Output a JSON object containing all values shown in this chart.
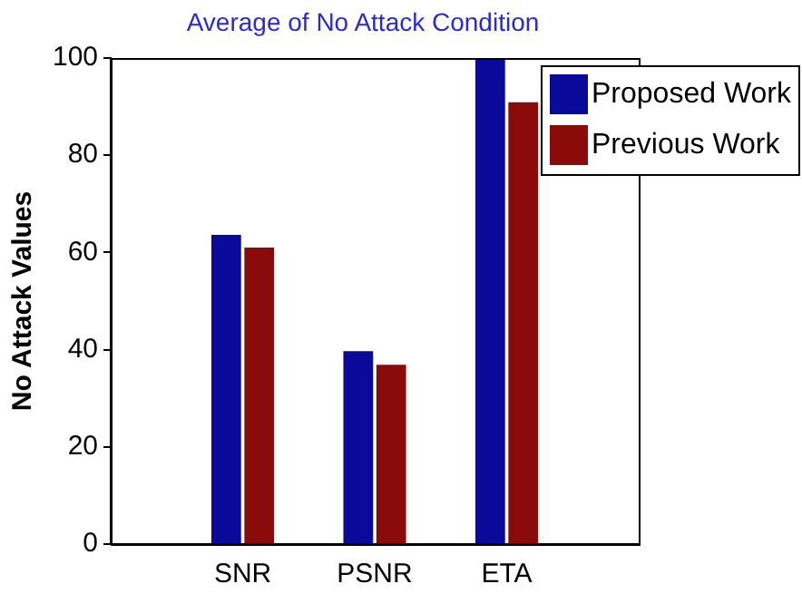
{
  "chart_data": {
    "type": "bar",
    "title": "Average of No Attack Condition",
    "ylabel": "No Attack Values",
    "categories": [
      "SNR",
      "PSNR",
      "ETA"
    ],
    "series": [
      {
        "name": "Proposed Work",
        "color": "#0a0a9a",
        "values": [
          63.6,
          39.7,
          100
        ]
      },
      {
        "name": "Previous Work",
        "color": "#8b0a0a",
        "values": [
          61,
          36.9,
          90.9
        ]
      }
    ],
    "ylim": [
      0,
      100
    ],
    "yticks": [
      0,
      20,
      40,
      60,
      80,
      100
    ],
    "grid": false,
    "legend": "top right"
  }
}
